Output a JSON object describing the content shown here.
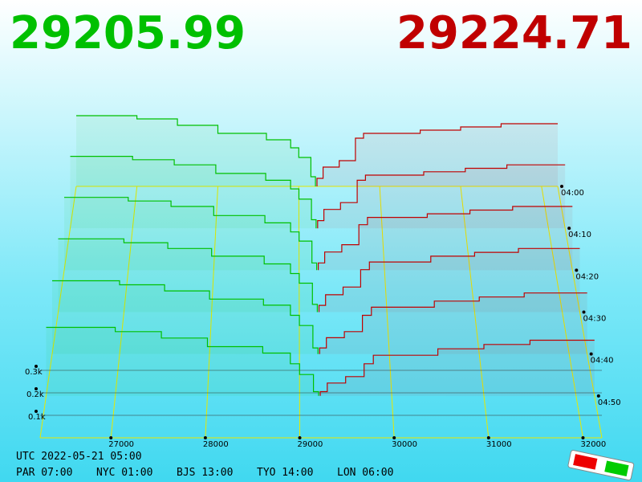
{
  "chart_data": {
    "type": "depth3d",
    "bid": "29205.99",
    "ask": "29224.71",
    "bid_color": "#00c000",
    "ask_color": "#c00000",
    "xlim": [
      26250,
      32200
    ],
    "xticks": [
      27000,
      28000,
      29000,
      30000,
      31000,
      32000
    ],
    "yticks": [
      {
        "value": 100,
        "label": "0.1k"
      },
      {
        "value": 200,
        "label": "0.2k"
      },
      {
        "value": 300,
        "label": "0.3k"
      }
    ],
    "time_ticks": [
      "04:00",
      "04:10",
      "04:20",
      "04:30",
      "04:40",
      "04:50"
    ],
    "bid_prices": [
      29150,
      29000,
      28900,
      28600,
      28000,
      27500,
      27000,
      26500
    ],
    "ask_prices": [
      29300,
      29500,
      29700,
      29800,
      30500,
      31000,
      31500,
      32000
    ],
    "snapshots": [
      {
        "bids": [
          60,
          180,
          240,
          290,
          330,
          380,
          420,
          440
        ],
        "asks": [
          50,
          120,
          160,
          300,
          330,
          350,
          370,
          390
        ]
      },
      {
        "bids": [
          50,
          170,
          230,
          280,
          320,
          370,
          400,
          420
        ],
        "asks": [
          45,
          110,
          150,
          280,
          310,
          330,
          350,
          370
        ]
      },
      {
        "bids": [
          40,
          160,
          210,
          260,
          300,
          350,
          380,
          400
        ],
        "asks": [
          40,
          100,
          140,
          250,
          290,
          310,
          330,
          350
        ]
      },
      {
        "bids": [
          40,
          150,
          200,
          250,
          290,
          330,
          360,
          380
        ],
        "asks": [
          35,
          90,
          130,
          220,
          260,
          290,
          310,
          330
        ]
      },
      {
        "bids": [
          30,
          140,
          190,
          240,
          270,
          310,
          340,
          360
        ],
        "asks": [
          30,
          80,
          110,
          190,
          230,
          260,
          280,
          300
        ]
      },
      {
        "bids": [
          20,
          100,
          150,
          200,
          230,
          270,
          300,
          320
        ],
        "asks": [
          20,
          60,
          90,
          150,
          190,
          220,
          240,
          260
        ]
      }
    ],
    "utc": "UTC 2022-05-21 05:00",
    "clocks": [
      "PAR 07:00",
      "NYC 01:00",
      "BJS 13:00",
      "TYO 14:00",
      "LON 06:00"
    ]
  }
}
